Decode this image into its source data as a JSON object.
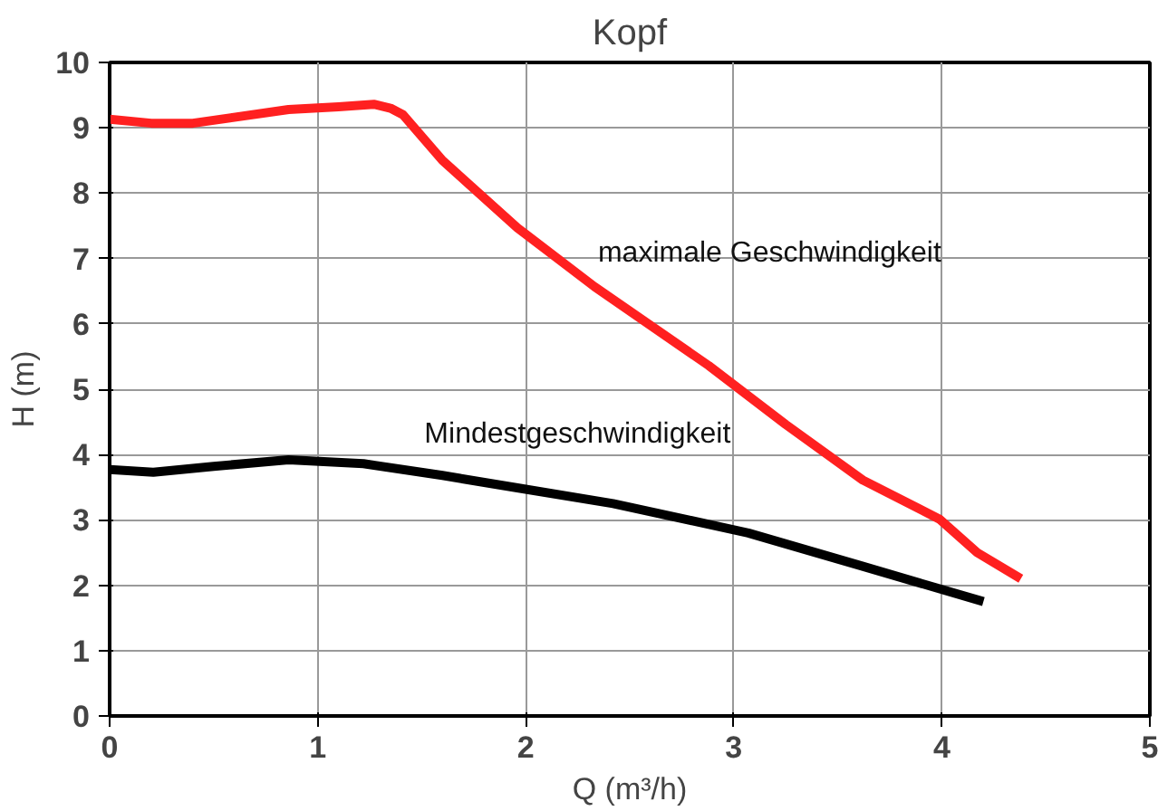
{
  "chart_data": {
    "type": "line",
    "title": "Kopf",
    "xlabel": "Q (m³/h)",
    "ylabel": "H (m)",
    "xlim": [
      0,
      5
    ],
    "ylim": [
      0,
      10
    ],
    "xticks": [
      0,
      1,
      2,
      3,
      4,
      5
    ],
    "yticks": [
      0,
      1,
      2,
      3,
      4,
      5,
      6,
      7,
      8,
      9,
      10
    ],
    "grid": true,
    "marker": "none",
    "line_style": "solid",
    "series": [
      {
        "name": "maximale Geschwindigkeit",
        "color": "#ff2020",
        "x": [
          0,
          0.2,
          0.4,
          0.86,
          1.1,
          1.27,
          1.35,
          1.41,
          1.6,
          1.96,
          2.33,
          2.88,
          3.25,
          3.62,
          3.99,
          4.17,
          4.38
        ],
        "values": [
          9.13,
          9.07,
          9.07,
          9.28,
          9.32,
          9.36,
          9.3,
          9.2,
          8.5,
          7.47,
          6.57,
          5.36,
          4.46,
          3.61,
          3.01,
          2.5,
          2.1
        ]
      },
      {
        "name": "Mindestgeschwindigkeit",
        "color": "#000000",
        "x": [
          0,
          0.21,
          0.5,
          0.86,
          1.22,
          1.6,
          1.96,
          2.42,
          3.07,
          3.62,
          4.2
        ],
        "values": [
          3.77,
          3.73,
          3.82,
          3.92,
          3.86,
          3.68,
          3.49,
          3.25,
          2.8,
          2.29,
          1.75
        ]
      }
    ]
  }
}
